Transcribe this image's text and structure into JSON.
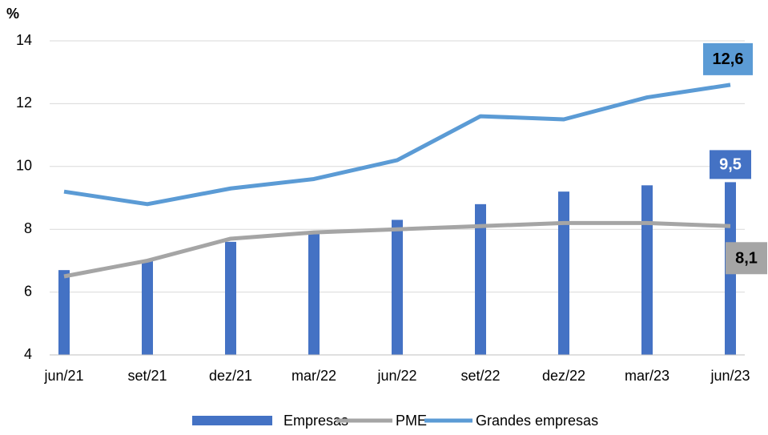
{
  "chart_data": {
    "type": "bar-line",
    "y_unit": "%",
    "categories": [
      "jun/21",
      "set/21",
      "dez/21",
      "mar/22",
      "jun/22",
      "set/22",
      "dez/22",
      "mar/23",
      "jun/23"
    ],
    "series": [
      {
        "name": "Empresas",
        "type": "bar",
        "color": "#4472c4",
        "values": [
          6.7,
          7.0,
          7.6,
          7.9,
          8.3,
          8.8,
          9.2,
          9.4,
          9.5
        ],
        "value_labels": [
          null,
          null,
          null,
          null,
          null,
          null,
          null,
          null,
          "9,5"
        ]
      },
      {
        "name": "PME",
        "type": "line",
        "color": "#a5a5a5",
        "values": [
          6.5,
          7.0,
          7.7,
          7.9,
          8.0,
          8.1,
          8.2,
          8.2,
          8.1
        ],
        "value_labels": [
          null,
          null,
          null,
          null,
          null,
          null,
          null,
          null,
          "8,1"
        ]
      },
      {
        "name": "Grandes empresas",
        "type": "line",
        "color": "#5b9bd5",
        "values": [
          9.2,
          8.8,
          9.3,
          9.6,
          10.2,
          11.6,
          11.5,
          12.2,
          12.6
        ],
        "value_labels": [
          null,
          null,
          null,
          null,
          null,
          null,
          null,
          null,
          "12,6"
        ]
      }
    ],
    "ylim": [
      4,
      14
    ],
    "yticks": [
      4,
      6,
      8,
      10,
      12,
      14
    ],
    "grid": true,
    "legend": "bottom"
  }
}
